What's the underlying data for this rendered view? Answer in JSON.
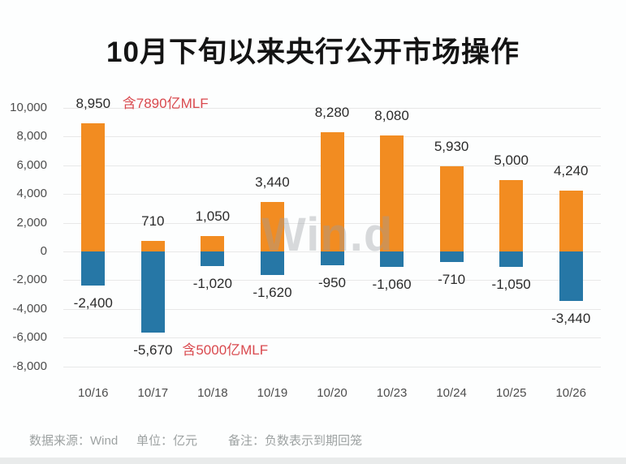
{
  "title": "10月下旬以来央行公开市场操作",
  "watermark": "Win.d",
  "footer": {
    "source_label": "数据来源：Wind",
    "unit_label": "单位：亿元",
    "note_label": "备注：负数表示到期回笼"
  },
  "colors": {
    "positive_bar": "#F28C21",
    "negative_bar": "#2677A6",
    "annotation": "#D9494E",
    "grid": "#E8E8E8",
    "value_label": "#2B2B2B",
    "axis_text": "#4D4D4D",
    "footer_text": "#9DA2A2"
  },
  "chart_data": {
    "type": "bar",
    "stacked": true,
    "title": "10月下旬以来央行公开市场操作",
    "unit": "亿元",
    "categories": [
      "10/16",
      "10/17",
      "10/18",
      "10/19",
      "10/20",
      "10/23",
      "10/24",
      "10/25",
      "10/26"
    ],
    "series": [
      {
        "id": "positive",
        "color": "#F28C21",
        "values": [
          8950,
          710,
          1050,
          3440,
          8280,
          8080,
          5930,
          5000,
          4240
        ]
      },
      {
        "id": "negative",
        "color": "#2677A6",
        "values": [
          -2400,
          -5670,
          -1020,
          -1620,
          -950,
          -1060,
          -710,
          -1050,
          -3440
        ]
      }
    ],
    "value_labels": {
      "positive": [
        "8,950",
        "710",
        "1,050",
        "3,440",
        "8,280",
        "8,080",
        "5,930",
        "5,000",
        "4,240"
      ],
      "negative": [
        "-2,400",
        "-5,670",
        "-1,020",
        "-1,620",
        "-950",
        "-1,060",
        "-710",
        "-1,050",
        "-3,440"
      ]
    },
    "annotations": [
      {
        "text": "含7890亿MLF",
        "category": "10/16",
        "side": "positive"
      },
      {
        "text": "含5000亿MLF",
        "category": "10/17",
        "side": "negative"
      }
    ],
    "ylim": [
      -8000,
      10000
    ],
    "ytick_interval": 2000,
    "ytick_labels": [
      "10,000",
      "8,000",
      "6,000",
      "4,000",
      "2,000",
      "0",
      "-2,000",
      "-4,000",
      "-6,000",
      "-8,000"
    ],
    "xlabel": "",
    "ylabel": "",
    "grid": true,
    "legend": false
  }
}
